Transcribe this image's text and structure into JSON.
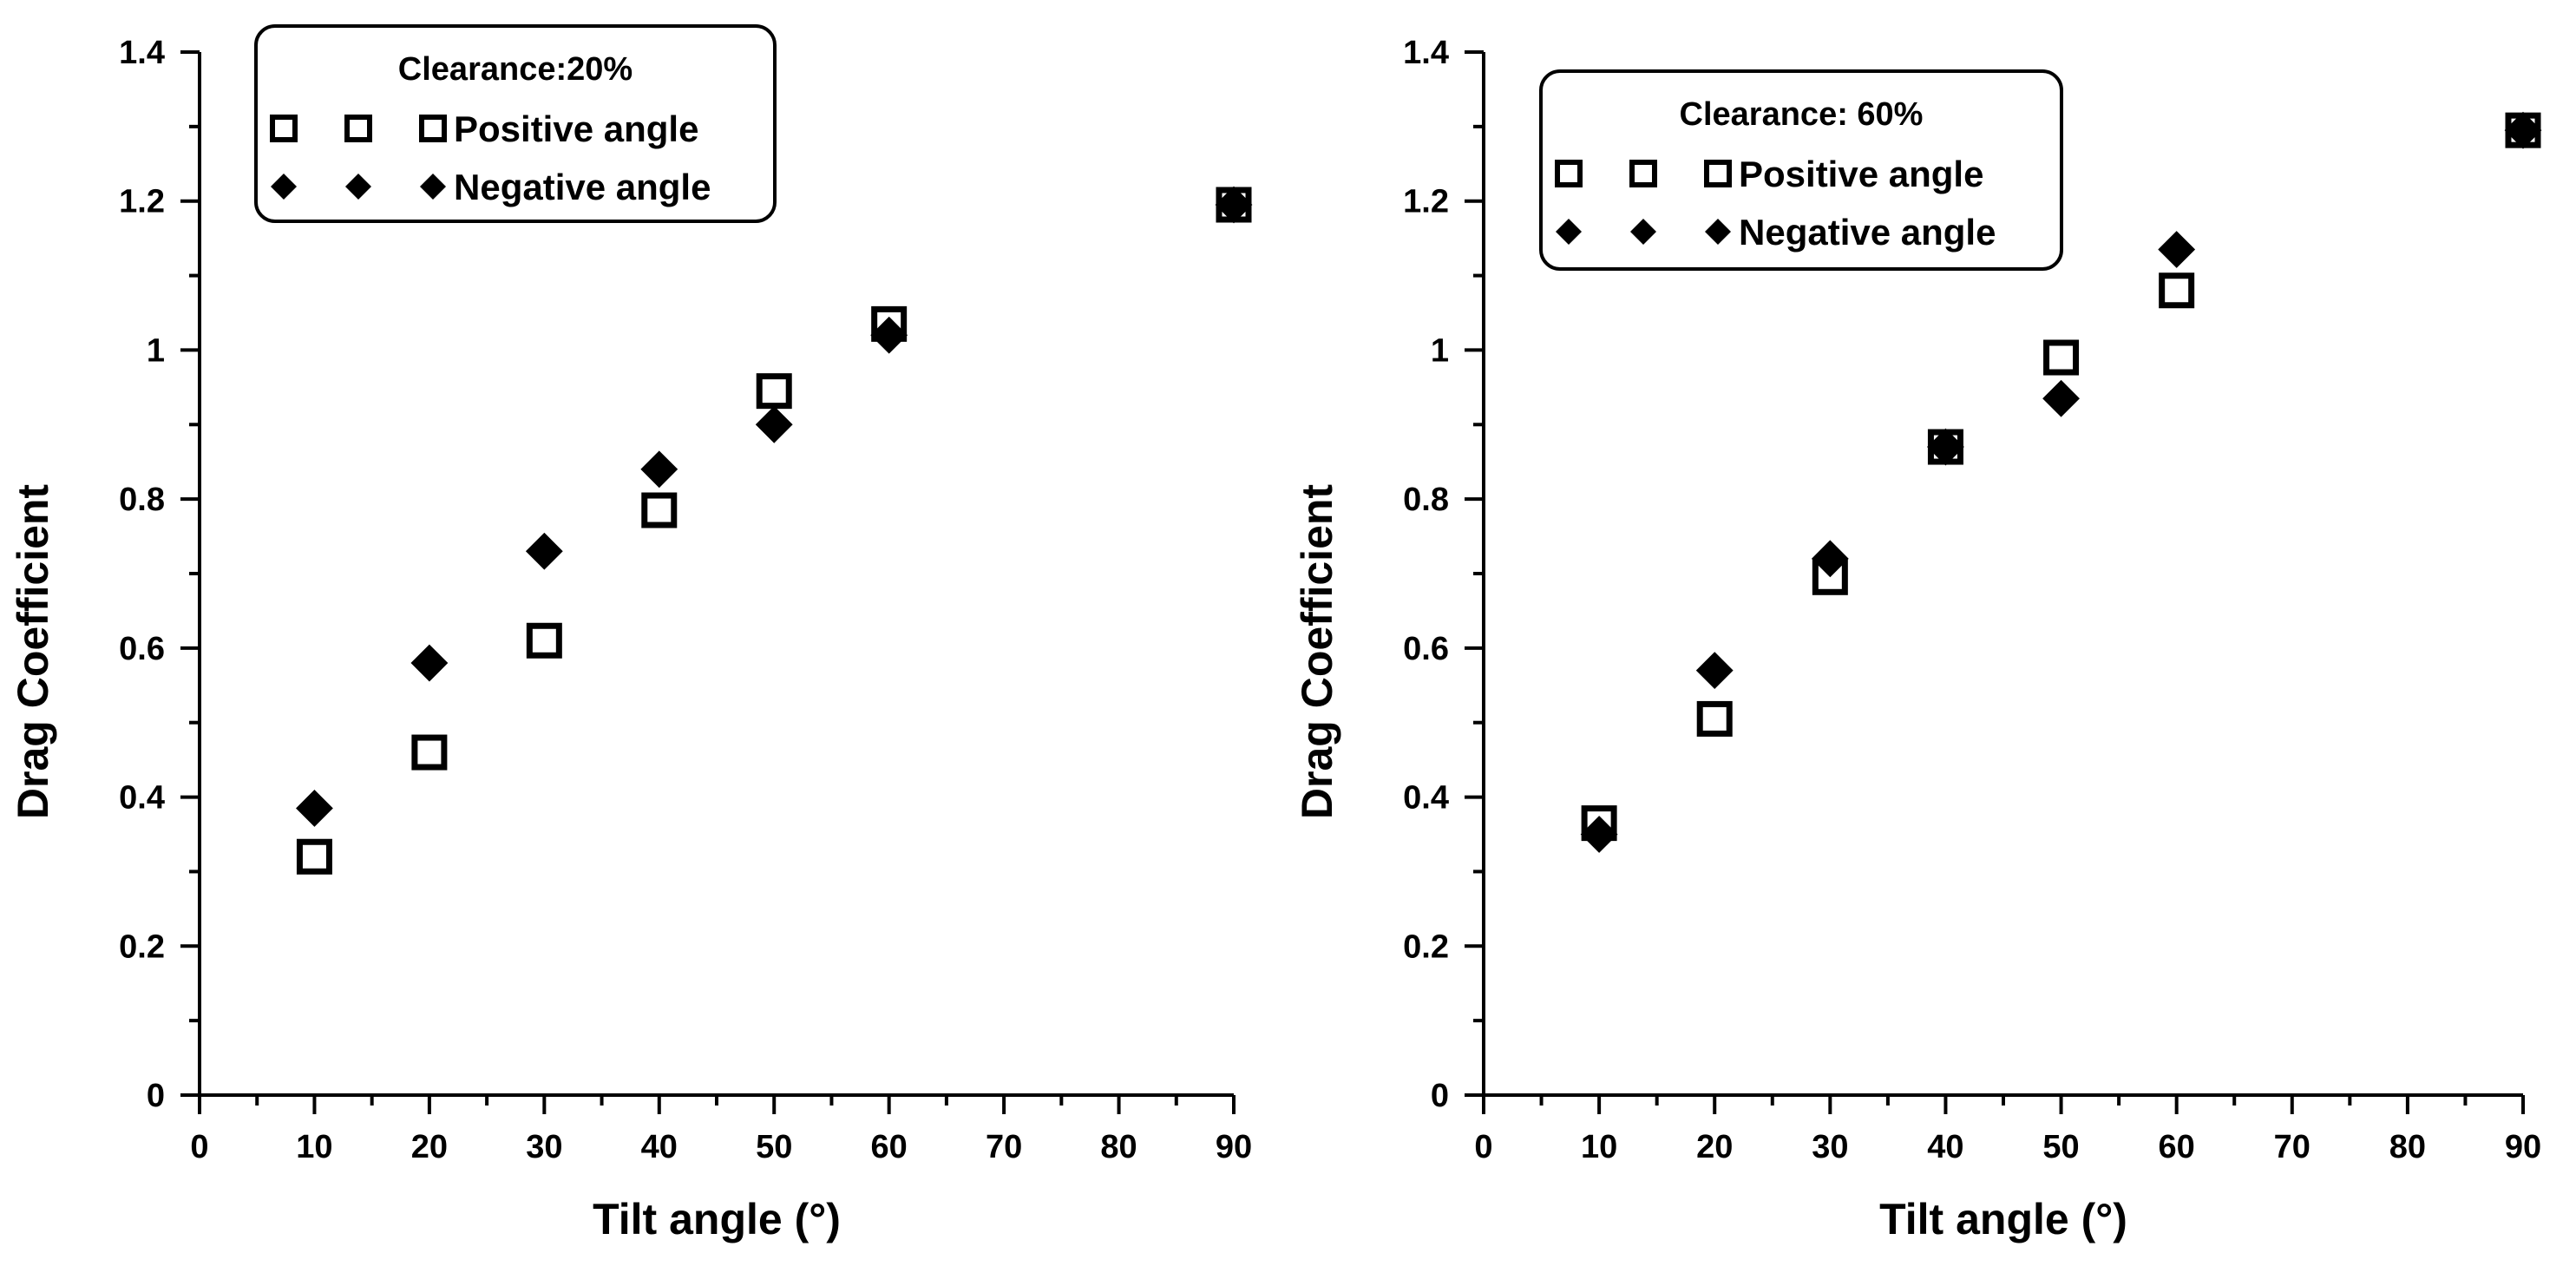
{
  "chart_data": [
    {
      "type": "scatter",
      "title": "",
      "legend_title": "Clearance:20%",
      "xlabel": "Tilt angle (°)",
      "ylabel": "Drag Coefficient",
      "xlim": [
        0,
        90
      ],
      "ylim": [
        0,
        1.4
      ],
      "xticks": [
        "0",
        "10",
        "20",
        "30",
        "40",
        "50",
        "60",
        "70",
        "80",
        "90"
      ],
      "yticks": [
        "0",
        "0.2",
        "0.4",
        "0.6",
        "0.8",
        "1",
        "1.2",
        "1.4"
      ],
      "grid": false,
      "legend_position": "top-left",
      "series": [
        {
          "name": "Positive angle",
          "marker": "open-square",
          "x": [
            10,
            20,
            30,
            40,
            50,
            60,
            90
          ],
          "y": [
            0.32,
            0.46,
            0.61,
            0.785,
            0.945,
            1.035,
            1.195
          ]
        },
        {
          "name": "Negative angle",
          "marker": "filled-diamond",
          "x": [
            10,
            20,
            30,
            40,
            50,
            60,
            90
          ],
          "y": [
            0.385,
            0.58,
            0.73,
            0.84,
            0.9,
            1.02,
            1.195
          ]
        }
      ]
    },
    {
      "type": "scatter",
      "title": "",
      "legend_title": "Clearance: 60%",
      "xlabel": "Tilt angle (°)",
      "ylabel": "Drag Coefficient",
      "xlim": [
        0,
        90
      ],
      "ylim": [
        0,
        1.4
      ],
      "xticks": [
        "0",
        "10",
        "20",
        "30",
        "40",
        "50",
        "60",
        "70",
        "80",
        "90"
      ],
      "yticks": [
        "0",
        "0.2",
        "0.4",
        "0.6",
        "0.8",
        "1",
        "1.2",
        "1.4"
      ],
      "grid": false,
      "legend_position": "top-left",
      "series": [
        {
          "name": "Positive angle",
          "marker": "open-square",
          "x": [
            10,
            20,
            30,
            40,
            50,
            60,
            90
          ],
          "y": [
            0.365,
            0.505,
            0.695,
            0.87,
            0.99,
            1.08,
            1.295
          ]
        },
        {
          "name": "Negative angle",
          "marker": "filled-diamond",
          "x": [
            10,
            20,
            30,
            40,
            50,
            60,
            90
          ],
          "y": [
            0.35,
            0.57,
            0.72,
            0.87,
            0.935,
            1.135,
            1.295
          ]
        }
      ]
    }
  ]
}
